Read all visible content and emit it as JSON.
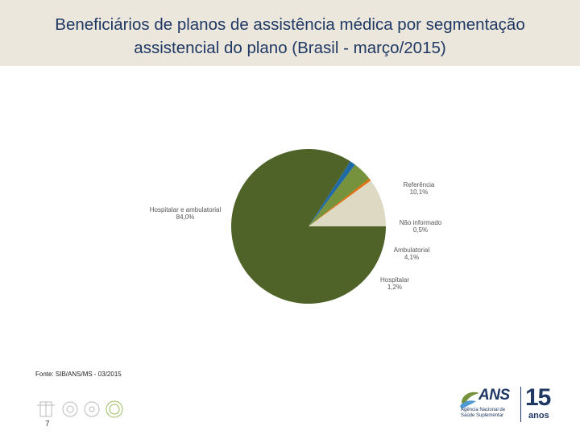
{
  "title": "Beneficiários de planos de assistência médica por segmentação assistencial do plano (Brasil - março/2015)",
  "source": "Fonte: SIB/ANS/MS - 03/2015",
  "page_number": "7",
  "logo": {
    "name": "ANS",
    "subtitle": "Agência Nacional de Saúde Suplementar",
    "anniversary_number": "15",
    "anniversary_word": "anos"
  },
  "colors": {
    "header_bg": "#ece7dc",
    "title": "#1f3864",
    "hospitalar_ambulatorial": "#4f6228",
    "referencia": "#ddd9c3",
    "nao_informado": "#e46c0a",
    "ambulatorial": "#76923c",
    "hospitalar": "#1f6aa5"
  },
  "chart_data": {
    "type": "pie",
    "title": "",
    "slices": [
      {
        "label": "Referência",
        "value_label": "10,1%",
        "value": 10.1,
        "color": "#ddd9c3"
      },
      {
        "label": "Não informado",
        "value_label": "0,5%",
        "value": 0.5,
        "color": "#e46c0a"
      },
      {
        "label": "Ambulatorial",
        "value_label": "4,1%",
        "value": 4.1,
        "color": "#76923c"
      },
      {
        "label": "Hospitalar",
        "value_label": "1,2%",
        "value": 1.2,
        "color": "#1f6aa5"
      },
      {
        "label": "Hospitalar e ambulatorial",
        "value_label": "84,0%",
        "value": 84.0,
        "color": "#4f6228"
      }
    ]
  }
}
